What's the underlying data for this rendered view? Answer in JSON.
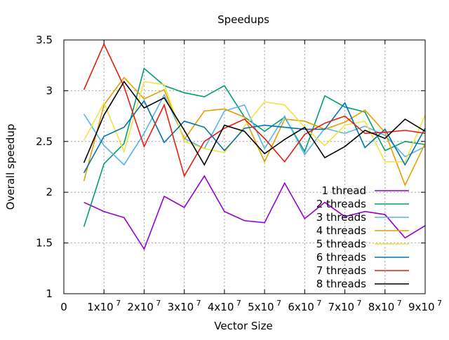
{
  "chart_data": {
    "type": "line",
    "title": "Speedups",
    "xlabel": "Vector Size",
    "ylabel": "Overall speedup",
    "xlim": [
      0,
      90000000
    ],
    "ylim": [
      1,
      3.5
    ],
    "grid": true,
    "legend_position": "bottom-right",
    "x_ticks": [
      {
        "value": 0,
        "base": "0",
        "exp": ""
      },
      {
        "value": 10000000,
        "base": "1x10",
        "exp": "7"
      },
      {
        "value": 20000000,
        "base": "2x10",
        "exp": "7"
      },
      {
        "value": 30000000,
        "base": "3x10",
        "exp": "7"
      },
      {
        "value": 40000000,
        "base": "4x10",
        "exp": "7"
      },
      {
        "value": 50000000,
        "base": "5x10",
        "exp": "7"
      },
      {
        "value": 60000000,
        "base": "6x10",
        "exp": "7"
      },
      {
        "value": 70000000,
        "base": "7x10",
        "exp": "7"
      },
      {
        "value": 80000000,
        "base": "8x10",
        "exp": "7"
      },
      {
        "value": 90000000,
        "base": "9x10",
        "exp": "7"
      }
    ],
    "y_ticks": [
      {
        "value": 1,
        "label": "1"
      },
      {
        "value": 1.5,
        "label": "1.5"
      },
      {
        "value": 2,
        "label": "2"
      },
      {
        "value": 2.5,
        "label": "2.5"
      },
      {
        "value": 3,
        "label": "3"
      },
      {
        "value": 3.5,
        "label": "3.5"
      }
    ],
    "x": [
      5000000,
      10000000,
      15000000,
      20000000,
      25000000,
      30000000,
      35000000,
      40000000,
      45000000,
      50000000,
      55000000,
      60000000,
      65000000,
      70000000,
      75000000,
      80000000,
      85000000,
      90000000
    ],
    "series": [
      {
        "name": "1 thread",
        "color": "#9400d3",
        "values": [
          1.9,
          1.81,
          1.75,
          1.44,
          1.96,
          1.85,
          2.16,
          1.81,
          1.72,
          1.7,
          2.09,
          1.74,
          1.9,
          1.76,
          1.81,
          1.78,
          1.55,
          1.67
        ]
      },
      {
        "name": "2 threads",
        "color": "#009e73",
        "values": [
          1.66,
          2.28,
          2.48,
          3.22,
          3.05,
          2.98,
          2.94,
          3.05,
          2.74,
          2.6,
          2.74,
          2.4,
          2.95,
          2.84,
          2.79,
          2.41,
          2.5,
          2.47
        ]
      },
      {
        "name": "3 threads",
        "color": "#56b4e9",
        "values": [
          2.77,
          2.46,
          2.27,
          2.58,
          2.96,
          2.53,
          2.43,
          2.8,
          2.86,
          2.43,
          2.75,
          2.37,
          2.63,
          2.58,
          2.65,
          2.56,
          2.35,
          2.45
        ]
      },
      {
        "name": "4 threads",
        "color": "#e69f00",
        "values": [
          2.11,
          2.86,
          3.13,
          2.92,
          3.01,
          2.52,
          2.8,
          2.82,
          2.74,
          2.3,
          2.72,
          2.7,
          2.62,
          2.69,
          2.81,
          2.59,
          2.07,
          2.48
        ]
      },
      {
        "name": "5 threads",
        "color": "#f0e442",
        "values": [
          2.51,
          2.88,
          2.4,
          3.09,
          3.06,
          2.5,
          2.43,
          2.39,
          2.65,
          2.89,
          2.86,
          2.64,
          2.46,
          2.66,
          2.7,
          2.3,
          2.3,
          2.76
        ]
      },
      {
        "name": "6 threads",
        "color": "#0072b2",
        "values": [
          2.19,
          2.55,
          2.64,
          2.9,
          2.49,
          2.7,
          2.64,
          2.41,
          2.63,
          2.66,
          2.64,
          2.62,
          2.62,
          2.88,
          2.44,
          2.62,
          2.27,
          2.63
        ]
      },
      {
        "name": "7 threads",
        "color": "#e51e10",
        "values": [
          3.01,
          3.46,
          3.04,
          2.45,
          2.86,
          2.16,
          2.5,
          2.63,
          2.72,
          2.53,
          2.3,
          2.57,
          2.68,
          2.75,
          2.58,
          2.59,
          2.61,
          2.58
        ]
      },
      {
        "name": "8 threads",
        "color": "#000000",
        "values": [
          2.29,
          2.76,
          3.09,
          2.83,
          2.93,
          2.61,
          2.27,
          2.66,
          2.6,
          2.38,
          2.52,
          2.64,
          2.34,
          2.45,
          2.61,
          2.53,
          2.72,
          2.6
        ]
      }
    ]
  }
}
